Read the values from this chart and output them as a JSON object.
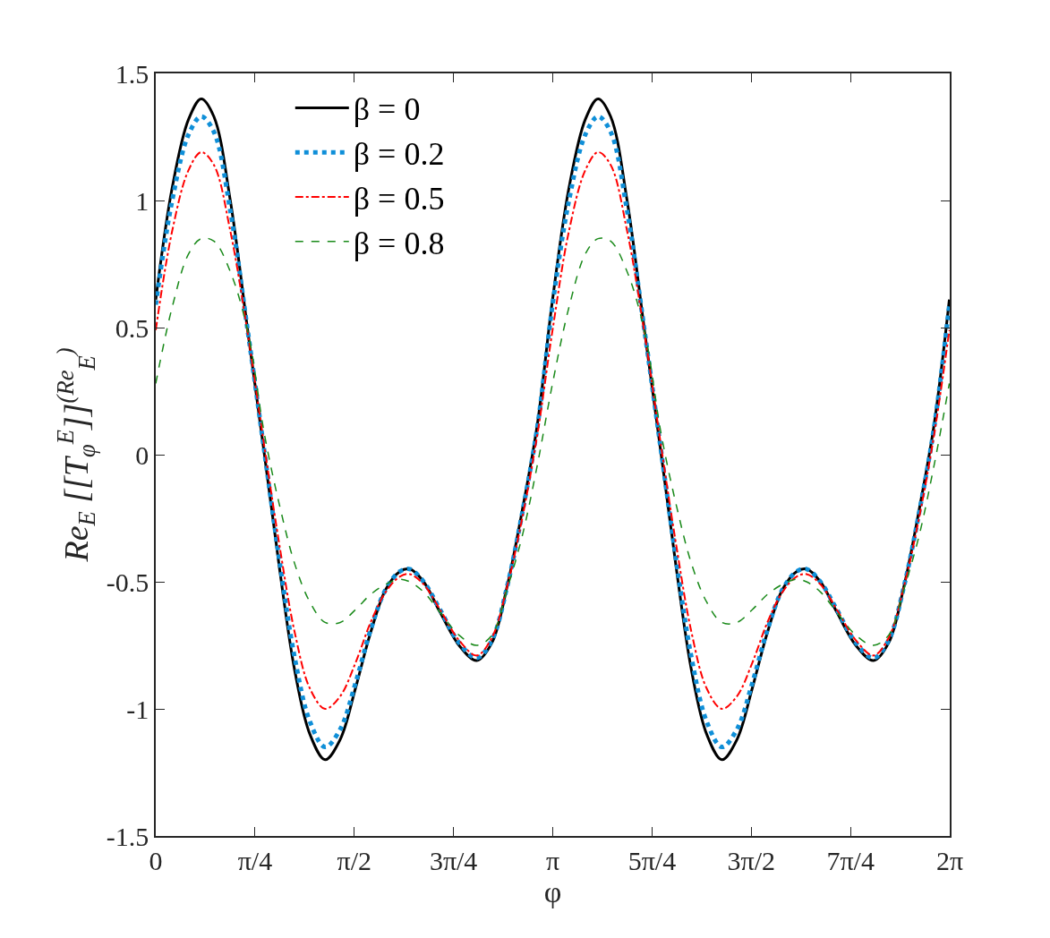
{
  "chart_data": {
    "type": "line",
    "xlabel": "φ",
    "ylabel": "Re$_{E}$ [[T$_{φ}$$^{E}$]]$^{(Re}$$_{E}$$^{)}$",
    "x": [
      0,
      0.13,
      0.26,
      0.36,
      0.46,
      0.59,
      0.73,
      0.86,
      0.98,
      1.1,
      1.22,
      1.34,
      1.46,
      1.58,
      1.7,
      1.82,
      1.93,
      2.01,
      2.12,
      2.25,
      2.4,
      2.54,
      2.66,
      2.78,
      2.9,
      3.02,
      3.14,
      3.27,
      3.4,
      3.5,
      3.6,
      3.73,
      3.87,
      4.0,
      4.12,
      4.24,
      4.36,
      4.48,
      4.6,
      4.72,
      4.84,
      4.96,
      5.07,
      5.15,
      5.26,
      5.39,
      5.54,
      5.68,
      5.8,
      5.92,
      6.04,
      6.16,
      6.28
    ],
    "series": [
      {
        "name": "β = 0",
        "color": "#000000",
        "line_style": "solid",
        "values": [
          0.61,
          1.05,
          1.32,
          1.4,
          1.33,
          1.0,
          0.48,
          0.0,
          -0.45,
          -0.85,
          -1.1,
          -1.2,
          -1.12,
          -0.92,
          -0.7,
          -0.53,
          -0.46,
          -0.45,
          -0.5,
          -0.62,
          -0.75,
          -0.81,
          -0.74,
          -0.52,
          -0.22,
          0.12,
          0.61,
          1.05,
          1.32,
          1.4,
          1.33,
          1.0,
          0.48,
          0.0,
          -0.45,
          -0.85,
          -1.1,
          -1.2,
          -1.12,
          -0.92,
          -0.7,
          -0.53,
          -0.46,
          -0.45,
          -0.5,
          -0.62,
          -0.75,
          -0.81,
          -0.74,
          -0.52,
          -0.22,
          0.12,
          0.61
        ]
      },
      {
        "name": "β = 0.2",
        "color": "#0f8fd8",
        "line_style": "dotted",
        "values": [
          0.59,
          1.0,
          1.26,
          1.33,
          1.27,
          0.96,
          0.48,
          0.01,
          -0.42,
          -0.8,
          -1.05,
          -1.15,
          -1.08,
          -0.9,
          -0.69,
          -0.53,
          -0.46,
          -0.45,
          -0.5,
          -0.61,
          -0.74,
          -0.8,
          -0.73,
          -0.52,
          -0.23,
          0.11,
          0.59,
          1.0,
          1.26,
          1.33,
          1.27,
          0.96,
          0.48,
          0.01,
          -0.42,
          -0.8,
          -1.05,
          -1.15,
          -1.08,
          -0.9,
          -0.69,
          -0.53,
          -0.46,
          -0.45,
          -0.5,
          -0.61,
          -0.74,
          -0.8,
          -0.73,
          -0.52,
          -0.23,
          0.11,
          0.59
        ]
      },
      {
        "name": "β = 0.5",
        "color": "#ff0000",
        "line_style": "dashdot",
        "values": [
          0.49,
          0.88,
          1.12,
          1.19,
          1.14,
          0.88,
          0.47,
          0.03,
          -0.36,
          -0.7,
          -0.92,
          -1.0,
          -0.95,
          -0.82,
          -0.66,
          -0.54,
          -0.48,
          -0.47,
          -0.51,
          -0.61,
          -0.73,
          -0.79,
          -0.72,
          -0.52,
          -0.25,
          0.08,
          0.49,
          0.88,
          1.12,
          1.19,
          1.14,
          0.88,
          0.47,
          0.03,
          -0.36,
          -0.7,
          -0.92,
          -1.0,
          -0.95,
          -0.82,
          -0.66,
          -0.54,
          -0.48,
          -0.47,
          -0.51,
          -0.61,
          -0.73,
          -0.79,
          -0.72,
          -0.52,
          -0.25,
          0.08,
          0.49
        ]
      },
      {
        "name": "β = 0.8",
        "color": "#1a8a1a",
        "line_style": "dashed",
        "values": [
          0.28,
          0.58,
          0.79,
          0.85,
          0.84,
          0.72,
          0.48,
          0.08,
          -0.2,
          -0.43,
          -0.58,
          -0.66,
          -0.66,
          -0.61,
          -0.55,
          -0.51,
          -0.49,
          -0.5,
          -0.54,
          -0.62,
          -0.71,
          -0.75,
          -0.71,
          -0.53,
          -0.32,
          -0.04,
          0.28,
          0.58,
          0.79,
          0.85,
          0.84,
          0.72,
          0.48,
          0.08,
          -0.2,
          -0.43,
          -0.58,
          -0.66,
          -0.66,
          -0.61,
          -0.55,
          -0.51,
          -0.49,
          -0.5,
          -0.54,
          -0.62,
          -0.71,
          -0.75,
          -0.71,
          -0.53,
          -0.32,
          -0.04,
          0.28
        ]
      }
    ],
    "xlim": [
      0,
      6.2832
    ],
    "xticks": [
      0,
      {
        "value": 0.7854,
        "label": "π/4"
      },
      {
        "value": 1.5708,
        "label": "π/2"
      },
      {
        "value": 2.3562,
        "label": "3π/4"
      },
      {
        "value": 3.1416,
        "label": "π"
      },
      {
        "value": 3.927,
        "label": "5π/4"
      },
      {
        "value": 4.7124,
        "label": "3π/2"
      },
      {
        "value": 5.4978,
        "label": "7π/4"
      },
      {
        "value": 6.2832,
        "label": "2π"
      }
    ],
    "ylim": [
      -1.5,
      1.5
    ],
    "yticks": [
      -1.5,
      -1,
      -0.5,
      0,
      0.5,
      1,
      1.5
    ],
    "legend": "top left",
    "marker": "none"
  }
}
